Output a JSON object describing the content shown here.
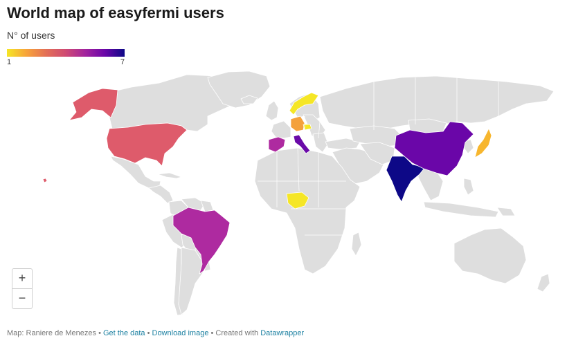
{
  "title": "World map of easyfermi users",
  "subtitle": "N° of users",
  "legend": {
    "min_label": "1",
    "max_label": "7",
    "colors": [
      "#f5e626",
      "#f7a33a",
      "#e36f56",
      "#cf4a73",
      "#a2239e",
      "#6a06a8",
      "#0d0887"
    ]
  },
  "colors": {
    "no_data": "#dedede",
    "background": "#ffffff",
    "link": "#1d81a2"
  },
  "zoom": {
    "in_label": "+",
    "out_label": "−"
  },
  "footer": {
    "credit": "Map: Raniere de Menezes",
    "sep1": " • ",
    "get_data": "Get the data",
    "sep2": " • ",
    "download": "Download image",
    "sep3": " • ",
    "created_with": "Created with ",
    "datawrapper": "Datawrapper"
  }
}
